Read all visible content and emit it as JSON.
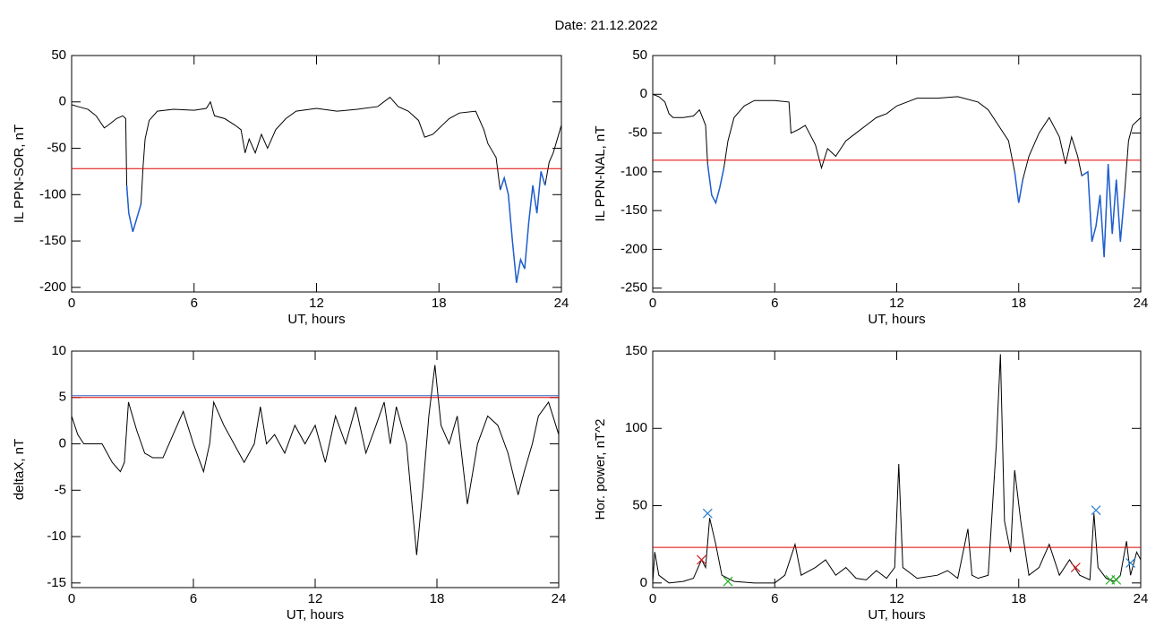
{
  "title": "Date:  21.12.2022",
  "chart_data": [
    {
      "type": "line",
      "ylabel": "IL PPN-SOR, nT",
      "xlabel": "UT, hours",
      "xlim": [
        0,
        24
      ],
      "xticks": [
        0,
        6,
        12,
        18,
        24
      ],
      "ylim": [
        -205,
        50
      ],
      "yticks": [
        50,
        0,
        -50,
        -100,
        -150,
        -200
      ],
      "line_color": "#000000",
      "below_color": "#1f5fd0",
      "hlines": [
        {
          "value": -72,
          "color": "#e00000"
        }
      ],
      "x": [
        0,
        0.3,
        0.8,
        1.2,
        1.6,
        1.8,
        2.2,
        2.5,
        2.65,
        2.7,
        2.8,
        3.0,
        3.2,
        3.4,
        3.5,
        3.6,
        3.8,
        4.2,
        5,
        6,
        6.6,
        6.8,
        7.0,
        7.5,
        8,
        8.3,
        8.5,
        8.7,
        9.0,
        9.3,
        9.6,
        10,
        10.5,
        11,
        12,
        13,
        14,
        15,
        15.6,
        16,
        16.5,
        17,
        17.3,
        17.7,
        18.5,
        19,
        19.8,
        20.2,
        20.4,
        20.8,
        21.0,
        21.2,
        21.4,
        21.6,
        21.8,
        22,
        22.2,
        22.4,
        22.6,
        22.8,
        23,
        23.2,
        23.4,
        23.6,
        23.8,
        24
      ],
      "values": [
        -3,
        -5,
        -8,
        -15,
        -28,
        -25,
        -18,
        -15,
        -18,
        -90,
        -120,
        -140,
        -125,
        -110,
        -70,
        -40,
        -20,
        -10,
        -8,
        -9,
        -7,
        0,
        -15,
        -18,
        -25,
        -30,
        -55,
        -40,
        -55,
        -35,
        -50,
        -30,
        -18,
        -10,
        -7,
        -10,
        -8,
        -5,
        5,
        -5,
        -10,
        -20,
        -38,
        -35,
        -18,
        -12,
        -10,
        -30,
        -45,
        -60,
        -95,
        -82,
        -100,
        -150,
        -195,
        -170,
        -180,
        -130,
        -90,
        -120,
        -75,
        -90,
        -65,
        -55,
        -40,
        -25
      ]
    },
    {
      "type": "line",
      "ylabel": "IL PPN-NAL, nT",
      "xlabel": "UT, hours",
      "xlim": [
        0,
        24
      ],
      "xticks": [
        0,
        6,
        12,
        18,
        24
      ],
      "ylim": [
        -255,
        50
      ],
      "yticks": [
        50,
        0,
        -50,
        -100,
        -150,
        -200,
        -250
      ],
      "line_color": "#000000",
      "below_color": "#1f5fd0",
      "hlines": [
        {
          "value": -85,
          "color": "#e00000"
        }
      ],
      "x": [
        0,
        0.3,
        0.6,
        0.8,
        1,
        1.5,
        2,
        2.3,
        2.6,
        2.7,
        2.9,
        3.1,
        3.3,
        3.5,
        3.7,
        4,
        4.5,
        5,
        6,
        6.7,
        6.8,
        7.2,
        7.5,
        8,
        8.3,
        8.6,
        9,
        9.5,
        10,
        10.5,
        11,
        11.5,
        12,
        13,
        14,
        15,
        16,
        16.5,
        17,
        17.5,
        17.8,
        18,
        18.2,
        18.5,
        19,
        19.5,
        20,
        20.3,
        20.6,
        20.9,
        21.1,
        21.4,
        21.6,
        21.8,
        22,
        22.2,
        22.4,
        22.6,
        22.8,
        23,
        23.2,
        23.4,
        23.6,
        24
      ],
      "values": [
        0,
        -3,
        -10,
        -25,
        -30,
        -30,
        -28,
        -20,
        -40,
        -90,
        -130,
        -140,
        -120,
        -95,
        -60,
        -30,
        -15,
        -8,
        -8,
        -10,
        -50,
        -45,
        -40,
        -65,
        -95,
        -70,
        -80,
        -60,
        -50,
        -40,
        -30,
        -25,
        -15,
        -5,
        -5,
        -3,
        -10,
        -20,
        -40,
        -60,
        -100,
        -140,
        -110,
        -80,
        -50,
        -30,
        -55,
        -90,
        -55,
        -80,
        -105,
        -100,
        -190,
        -170,
        -130,
        -210,
        -90,
        -180,
        -110,
        -190,
        -130,
        -60,
        -40,
        -30
      ]
    },
    {
      "type": "line",
      "ylabel": "deltaX, nT",
      "xlabel": "UT, hours",
      "xlim": [
        0,
        24
      ],
      "xticks": [
        0,
        6,
        12,
        18,
        24
      ],
      "ylim": [
        -15.5,
        10
      ],
      "yticks": [
        10,
        5,
        0,
        -5,
        -10,
        -15
      ],
      "line_color": "#000000",
      "hlines": [
        {
          "value": 5.2,
          "color": "#3060c0"
        },
        {
          "value": 5.0,
          "color": "#e00000"
        }
      ],
      "x": [
        0,
        0.3,
        0.6,
        1,
        1.5,
        2,
        2.4,
        2.6,
        2.8,
        3.2,
        3.6,
        4,
        4.5,
        5,
        5.5,
        6,
        6.5,
        6.8,
        7,
        7.5,
        8,
        8.5,
        9,
        9.3,
        9.6,
        10,
        10.5,
        11,
        11.5,
        12,
        12.5,
        13,
        13.5,
        14,
        14.5,
        15,
        15.4,
        15.7,
        16,
        16.5,
        17,
        17.3,
        17.6,
        17.9,
        18.2,
        18.6,
        19,
        19.5,
        20,
        20.5,
        21,
        21.5,
        22,
        22.3,
        22.7,
        23,
        23.5,
        24
      ],
      "values": [
        3,
        1,
        0,
        0,
        0,
        -2,
        -3,
        -2,
        4.5,
        1.5,
        -1,
        -1.5,
        -1.5,
        1,
        3.5,
        0,
        -3,
        0,
        4.5,
        2,
        0,
        -2,
        0,
        4,
        0,
        1,
        -1,
        2,
        0,
        2,
        -2,
        3,
        0,
        4,
        -1,
        2,
        4.5,
        0,
        4,
        0,
        -12,
        -5,
        3,
        8.5,
        2,
        0,
        3,
        -6.5,
        0,
        3,
        2,
        -1,
        -5.5,
        -3,
        0,
        3,
        4.5,
        1
      ]
    },
    {
      "type": "line",
      "ylabel": "Hor. power, nT^2",
      "xlabel": "UT, hours",
      "xlim": [
        0,
        24
      ],
      "xticks": [
        0,
        6,
        12,
        18,
        24
      ],
      "ylim": [
        -3,
        150
      ],
      "yticks": [
        150,
        100,
        50,
        0
      ],
      "line_color": "#000000",
      "hlines": [
        {
          "value": 23,
          "color": "#e00000"
        }
      ],
      "x": [
        0,
        0.1,
        0.3,
        0.8,
        1.5,
        2,
        2.4,
        2.6,
        2.8,
        3.1,
        3.4,
        4,
        5,
        6,
        6.5,
        7,
        7.3,
        8,
        8.5,
        9,
        9.5,
        10,
        10.5,
        11,
        11.5,
        11.9,
        12.1,
        12.3,
        13,
        14,
        14.5,
        15,
        15.5,
        15.7,
        16,
        16.5,
        16.9,
        17.1,
        17.3,
        17.6,
        17.8,
        18.1,
        18.5,
        19,
        19.5,
        20,
        20.5,
        21,
        21.5,
        21.7,
        21.9,
        22.3,
        22.7,
        23,
        23.3,
        23.5,
        23.8,
        24
      ],
      "values": [
        0,
        20,
        5,
        0,
        1,
        3,
        15,
        10,
        42,
        25,
        5,
        1,
        0,
        0,
        5,
        25,
        5,
        10,
        15,
        5,
        10,
        3,
        2,
        8,
        3,
        10,
        77,
        10,
        3,
        5,
        8,
        3,
        35,
        5,
        3,
        5,
        90,
        148,
        40,
        20,
        73,
        40,
        5,
        10,
        25,
        5,
        15,
        5,
        2,
        45,
        10,
        3,
        1,
        5,
        27,
        5,
        20,
        15
      ],
      "markers": [
        {
          "color": "#2a7fd0",
          "x": [
            2.7,
            21.8,
            23.5
          ],
          "y": [
            45,
            47,
            13
          ]
        },
        {
          "color": "#20b020",
          "x": [
            3.7,
            22.5,
            22.8
          ],
          "y": [
            1,
            2,
            2
          ]
        },
        {
          "color": "#d02020",
          "x": [
            2.4,
            20.8
          ],
          "y": [
            15,
            10
          ]
        }
      ]
    }
  ]
}
